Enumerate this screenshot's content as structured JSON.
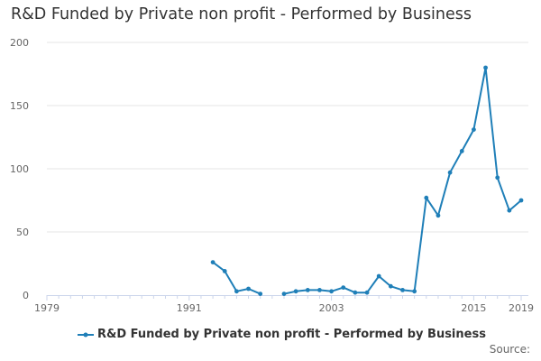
{
  "chart_data": {
    "type": "line",
    "title": "R&D Funded by Private non profit - Performed by Business",
    "xlabel": "",
    "ylabel": "",
    "xlim": [
      1979,
      2019
    ],
    "ylim": [
      0,
      200
    ],
    "x_ticks": [
      1979,
      1991,
      2003,
      2015,
      2019
    ],
    "y_ticks": [
      0,
      50,
      100,
      150,
      200
    ],
    "grid": true,
    "legend": "bottom-center",
    "series": [
      {
        "name": "R&D Funded by Private non profit - Performed by Business",
        "color": "#1f7fb8",
        "points": [
          {
            "x": 1993,
            "y": 26
          },
          {
            "x": 1994,
            "y": 19
          },
          {
            "x": 1995,
            "y": 3
          },
          {
            "x": 1996,
            "y": 5
          },
          {
            "x": 1997,
            "y": 1
          },
          {
            "x": 1998,
            "y": null
          },
          {
            "x": 1999,
            "y": 1
          },
          {
            "x": 2000,
            "y": 3
          },
          {
            "x": 2001,
            "y": 4
          },
          {
            "x": 2002,
            "y": 4
          },
          {
            "x": 2003,
            "y": 3
          },
          {
            "x": 2004,
            "y": 6
          },
          {
            "x": 2005,
            "y": 2
          },
          {
            "x": 2006,
            "y": 2
          },
          {
            "x": 2007,
            "y": 15
          },
          {
            "x": 2008,
            "y": 7
          },
          {
            "x": 2009,
            "y": 4
          },
          {
            "x": 2010,
            "y": 3
          },
          {
            "x": 2011,
            "y": 77
          },
          {
            "x": 2012,
            "y": 63
          },
          {
            "x": 2013,
            "y": 97
          },
          {
            "x": 2014,
            "y": 114
          },
          {
            "x": 2015,
            "y": 131
          },
          {
            "x": 2016,
            "y": 180
          },
          {
            "x": 2017,
            "y": 93
          },
          {
            "x": 2018,
            "y": 67
          },
          {
            "x": 2019,
            "y": 75
          }
        ]
      }
    ],
    "source_label": "Source:"
  }
}
